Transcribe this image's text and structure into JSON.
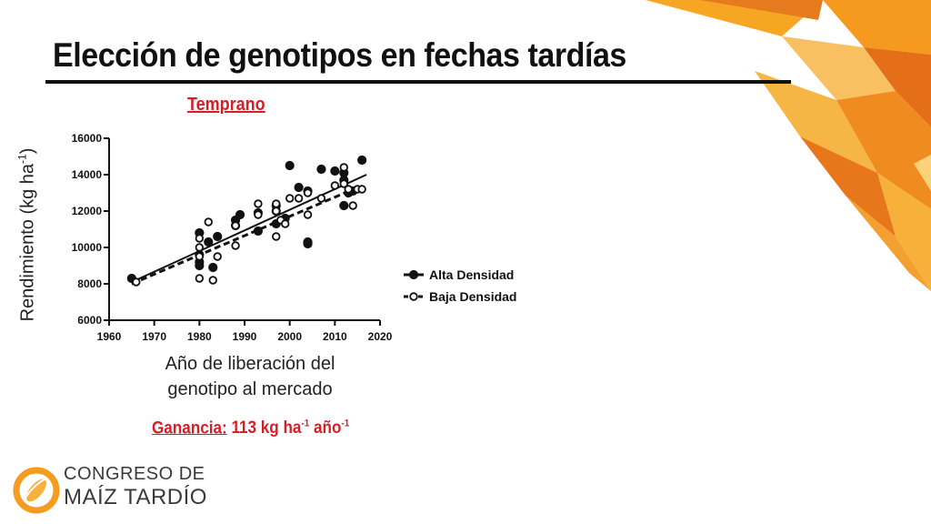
{
  "slide": {
    "title": "Elección de genotipos en fechas tardías",
    "chart_heading": "Temprano",
    "gain_label": "Ganancia:",
    "gain_value": "113 kg ha",
    "gain_sup1": "-1",
    "gain_unit": " año",
    "gain_sup2": "-1"
  },
  "logo": {
    "line1": "CONGRESO DE",
    "line2": "MAÍZ TARDÍO"
  },
  "colors": {
    "accent_red": "#d51f26",
    "orange_light": "#f8a825",
    "orange_dark": "#e8761a",
    "ink": "#111111"
  },
  "chart_data": {
    "type": "scatter",
    "title": "Temprano",
    "xlabel": "Año de liberación del genotipo al mercado",
    "ylabel_main": "Rendimiento (kg ha",
    "ylabel_sup": "-1",
    "ylabel_end": ")",
    "xlim": [
      1960,
      2020
    ],
    "ylim": [
      6000,
      16000
    ],
    "xticks": [
      1960,
      1970,
      1980,
      1990,
      2000,
      2010,
      2020
    ],
    "yticks": [
      6000,
      8000,
      10000,
      12000,
      14000,
      16000
    ],
    "legend_position": "right",
    "series": [
      {
        "name": "Alta Densidad",
        "marker": "filled-circle",
        "line": "solid",
        "trend": [
          [
            1965,
            8100
          ],
          [
            2017,
            14000
          ]
        ],
        "points": [
          [
            1965,
            8300
          ],
          [
            1980,
            10800
          ],
          [
            1980,
            9600
          ],
          [
            1980,
            9200
          ],
          [
            1980,
            9000
          ],
          [
            1982,
            10300
          ],
          [
            1983,
            8900
          ],
          [
            1984,
            10600
          ],
          [
            1988,
            11500
          ],
          [
            1988,
            11200
          ],
          [
            1989,
            11800
          ],
          [
            1993,
            10900
          ],
          [
            1993,
            11900
          ],
          [
            1997,
            12000
          ],
          [
            1997,
            12300
          ],
          [
            1997,
            11300
          ],
          [
            1999,
            11600
          ],
          [
            2000,
            14500
          ],
          [
            2002,
            13300
          ],
          [
            2004,
            13100
          ],
          [
            2004,
            10200
          ],
          [
            2004,
            10300
          ],
          [
            2007,
            14300
          ],
          [
            2010,
            14200
          ],
          [
            2012,
            14100
          ],
          [
            2012,
            13700
          ],
          [
            2012,
            12300
          ],
          [
            2013,
            13000
          ],
          [
            2014,
            13100
          ],
          [
            2016,
            14800
          ]
        ]
      },
      {
        "name": "Baja Densidad",
        "marker": "open-circle",
        "line": "dashed",
        "trend": [
          [
            1965,
            8000
          ],
          [
            2016,
            13400
          ]
        ],
        "points": [
          [
            1966,
            8100
          ],
          [
            1980,
            10500
          ],
          [
            1980,
            10000
          ],
          [
            1980,
            9500
          ],
          [
            1980,
            8300
          ],
          [
            1982,
            11400
          ],
          [
            1983,
            8200
          ],
          [
            1984,
            9500
          ],
          [
            1988,
            10100
          ],
          [
            1988,
            11200
          ],
          [
            1993,
            12400
          ],
          [
            1993,
            11800
          ],
          [
            1997,
            12400
          ],
          [
            1997,
            12000
          ],
          [
            1997,
            10600
          ],
          [
            1998,
            11500
          ],
          [
            1999,
            11300
          ],
          [
            2000,
            12700
          ],
          [
            2002,
            12700
          ],
          [
            2004,
            11800
          ],
          [
            2004,
            13000
          ],
          [
            2007,
            12700
          ],
          [
            2010,
            13400
          ],
          [
            2012,
            14400
          ],
          [
            2012,
            13500
          ],
          [
            2013,
            13200
          ],
          [
            2014,
            12300
          ],
          [
            2015,
            13200
          ],
          [
            2016,
            13200
          ]
        ]
      }
    ]
  }
}
